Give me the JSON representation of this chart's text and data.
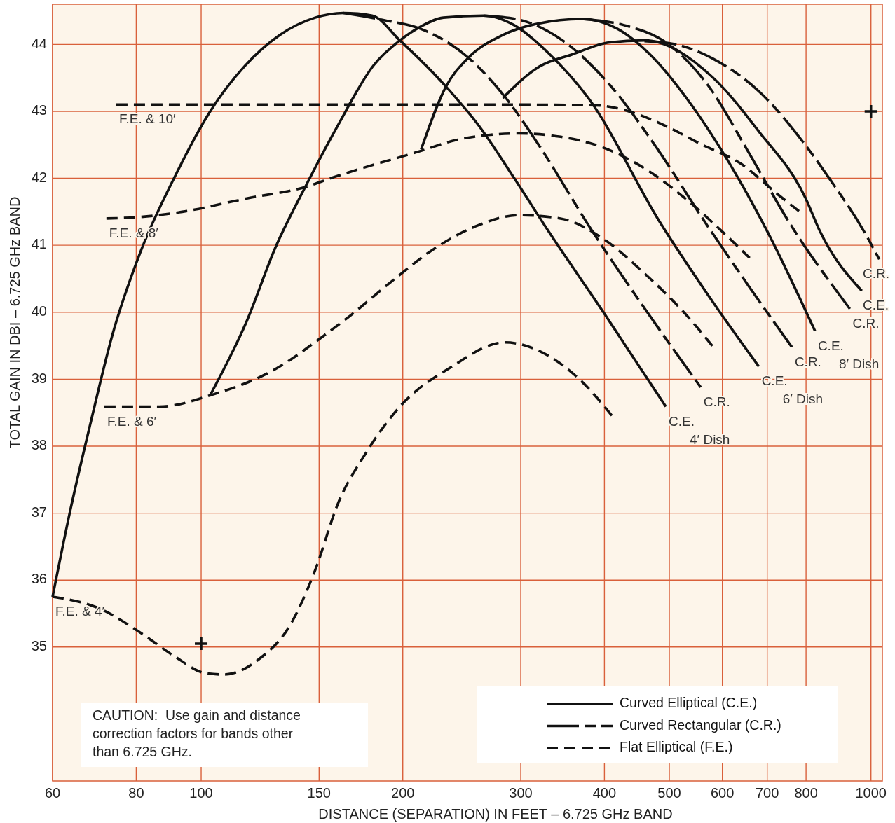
{
  "chart_data": {
    "type": "line",
    "xlabel": "DISTANCE (SEPARATION) IN FEET – 6.725 GHz BAND",
    "ylabel": "TOTAL GAIN IN DBI – 6.725 GHz BAND",
    "log": "x",
    "xlim": [
      60,
      1040
    ],
    "ylim": [
      33,
      44.6
    ],
    "xticks": [
      60,
      80,
      100,
      150,
      200,
      300,
      400,
      500,
      600,
      700,
      800,
      1000
    ],
    "yticks": [
      35,
      36,
      37,
      38,
      39,
      40,
      41,
      42,
      43,
      44
    ],
    "grid": true,
    "legend": "bottom right",
    "series": [
      {
        "name": "Curved Elliptical (C.E.)",
        "color": "#111111",
        "line_style": "solid",
        "x": [
          60,
          63.7,
          68.5,
          73.6,
          81.1,
          91.5,
          103,
          116,
          131,
          148,
          163,
          180,
          198,
          232,
          260,
          293,
          330,
          398,
          494
        ],
        "values": [
          35.75,
          37.02,
          38.38,
          39.64,
          40.89,
          42.04,
          42.99,
          43.67,
          44.14,
          44.4,
          44.47,
          44.43,
          44.06,
          43.37,
          42.78,
          42.01,
          41.21,
          40.01,
          38.59
        ]
      },
      {
        "name": "Curved Rectangular (C.R.)",
        "color": "#111111",
        "line_style": "longdash",
        "x": [
          163,
          188,
          213,
          250,
          286,
          320,
          382,
          459,
          557
        ],
        "values": [
          44.47,
          44.36,
          44.23,
          43.81,
          43.18,
          42.48,
          41.24,
          40.06,
          38.88
        ]
      },
      {
        "name": "Flat Elliptical (F.E.)",
        "color": "#111111",
        "line_style": "dashed",
        "x": [
          60,
          70.7,
          81,
          91,
          101.5,
          108,
          122,
          136,
          148,
          160,
          176,
          198,
          236,
          284,
          330,
          367,
          414
        ],
        "values": [
          35.75,
          35.57,
          35.22,
          34.87,
          34.61,
          34.59,
          34.82,
          35.34,
          36.15,
          37.14,
          37.89,
          38.59,
          39.18,
          39.55,
          39.35,
          39.0,
          38.41
        ]
      },
      {
        "color": "#111111",
        "line_style": "solid",
        "x": [
          103,
          117,
          129,
          143,
          160,
          181,
          198,
          213,
          230,
          264,
          293,
          330,
          379,
          483,
          570,
          680
        ],
        "values": [
          38.75,
          39.87,
          40.96,
          41.87,
          42.79,
          43.69,
          44.06,
          44.27,
          44.4,
          44.43,
          44.29,
          43.87,
          43.19,
          41.36,
          40.27,
          39.19
        ]
      },
      {
        "color": "#111111",
        "line_style": "longdash",
        "x": [
          264,
          298,
          344,
          407,
          482,
          564,
          659,
          762
        ],
        "values": [
          44.43,
          44.37,
          44.08,
          43.4,
          42.41,
          41.36,
          40.37,
          39.48
        ]
      },
      {
        "color": "#111111",
        "line_style": "dashed",
        "x": [
          71.7,
          86.6,
          104,
          129,
          152,
          167,
          193,
          223,
          258,
          298,
          344,
          398,
          459,
          531,
          587
        ],
        "values": [
          38.59,
          38.59,
          38.77,
          39.15,
          39.64,
          39.95,
          40.47,
          40.95,
          41.29,
          41.45,
          41.4,
          41.1,
          40.58,
          39.95,
          39.43
        ]
      },
      {
        "color": "#111111",
        "line_style": "solid",
        "x": [
          213,
          232,
          250,
          282,
          318,
          370,
          417,
          471,
          531,
          599,
          700,
          825
        ],
        "values": [
          42.43,
          43.37,
          43.79,
          44.14,
          44.31,
          44.38,
          44.24,
          43.82,
          43.19,
          42.41,
          41.21,
          39.72
        ]
      },
      {
        "color": "#111111",
        "line_style": "longdash",
        "x": [
          370,
          427,
          494,
          570,
          659,
          753,
          930
        ],
        "values": [
          44.38,
          44.29,
          44.03,
          43.4,
          42.36,
          41.36,
          40.05
        ]
      },
      {
        "color": "#111111",
        "line_style": "dashed",
        "x": [
          72.2,
          80.5,
          93.7,
          117,
          143,
          158,
          213,
          240,
          270,
          298,
          344,
          398,
          459,
          531,
          599,
          659
        ],
        "values": [
          41.4,
          41.42,
          41.5,
          41.7,
          41.87,
          42.02,
          42.41,
          42.57,
          42.65,
          42.67,
          42.62,
          42.46,
          42.15,
          41.68,
          41.21,
          40.81
        ]
      },
      {
        "color": "#111111",
        "line_style": "solid",
        "x": [
          282,
          320,
          358,
          407,
          459,
          580,
          680,
          799,
          839,
          969
        ],
        "values": [
          43.2,
          43.67,
          43.85,
          44.03,
          44.06,
          43.51,
          42.7,
          41.7,
          41.21,
          40.32
        ]
      },
      {
        "color": "#111111",
        "line_style": "longdash",
        "x": [
          459,
          506,
          580,
          680,
          799,
          865,
          976,
          1029
        ],
        "values": [
          44.05,
          44.01,
          43.79,
          43.3,
          42.49,
          42.01,
          41.21,
          40.79
        ]
      },
      {
        "color": "#111111",
        "line_style": "dashed",
        "x": [
          74.7,
          100,
          200,
          300,
          388,
          438,
          494,
          557,
          639,
          726,
          790
        ],
        "values": [
          43.1,
          43.1,
          43.1,
          43.1,
          43.09,
          42.99,
          42.78,
          42.51,
          42.22,
          41.76,
          41.47
        ]
      },
      {
        "type": "scatter",
        "color": "#111111",
        "marker": "cross",
        "x": [
          100,
          1000
        ],
        "values": [
          35.05,
          43.0
        ]
      }
    ],
    "annotations": [
      "CAUTION:  Use gain and distance correction factors for bands other than 6.725 GHz.",
      {
        "text": "F.E. & 10′",
        "x": 74.7,
        "y": 43.1
      },
      {
        "text": "F.E. & 8′",
        "x": 72.2,
        "y": 41.4
      },
      {
        "text": "F.E. & 6′",
        "x": 71.7,
        "y": 38.59
      },
      {
        "text": "F.E. & 4′",
        "x": 60,
        "y": 35.75
      },
      {
        "text": "C.E.",
        "x": 494,
        "y": 38.59
      },
      {
        "text": "C.R.",
        "x": 557,
        "y": 38.88
      },
      {
        "text": "4′ Dish",
        "x": 494,
        "y": 38.59
      },
      {
        "text": "C.E.",
        "x": 680,
        "y": 39.19
      },
      {
        "text": "C.R.",
        "x": 762,
        "y": 39.48
      },
      {
        "text": "6′ Dish",
        "x": 680,
        "y": 39.19
      },
      {
        "text": "C.E.",
        "x": 825,
        "y": 39.72
      },
      {
        "text": "C.R.",
        "x": 930,
        "y": 40.05
      },
      {
        "text": "8′ Dish",
        "x": 825,
        "y": 39.72
      },
      {
        "text": "C.E.",
        "x": 969,
        "y": 40.32
      },
      {
        "text": "C.R.",
        "x": 1029,
        "y": 40.79
      }
    ]
  }
}
